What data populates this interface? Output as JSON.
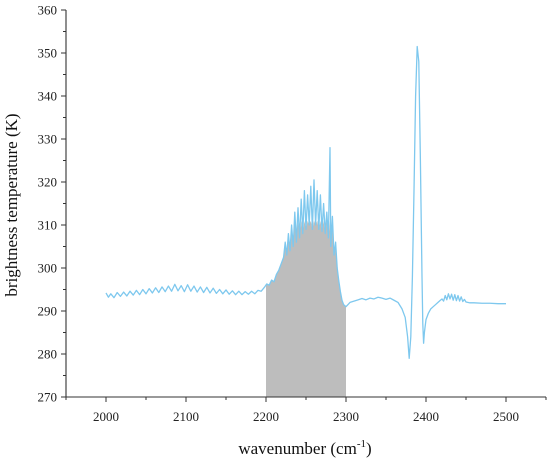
{
  "chart_data": {
    "type": "line",
    "xlabel_main": "wavenumber (cm",
    "xlabel_sup": "-1",
    "xlabel_end": ")",
    "ylabel": "brightness temperature (K)",
    "xlim": [
      1950,
      2550
    ],
    "ylim": [
      270,
      360
    ],
    "xticks": [
      2000,
      2100,
      2200,
      2300,
      2400,
      2500
    ],
    "yticks": [
      270,
      280,
      290,
      300,
      310,
      320,
      330,
      340,
      350,
      360
    ],
    "shaded_region": {
      "x_start": 2200,
      "x_end": 2300,
      "color": "#bdbdbd"
    },
    "series": [
      {
        "color": "#7ec8ee",
        "points": [
          [
            2000,
            294.2
          ],
          [
            2003,
            293.2
          ],
          [
            2006,
            294.0
          ],
          [
            2010,
            293.1
          ],
          [
            2014,
            294.3
          ],
          [
            2018,
            293.4
          ],
          [
            2022,
            294.4
          ],
          [
            2026,
            293.5
          ],
          [
            2030,
            294.6
          ],
          [
            2034,
            293.7
          ],
          [
            2038,
            294.8
          ],
          [
            2042,
            293.8
          ],
          [
            2046,
            295.0
          ],
          [
            2050,
            294.0
          ],
          [
            2054,
            295.2
          ],
          [
            2058,
            294.2
          ],
          [
            2062,
            295.4
          ],
          [
            2066,
            294.3
          ],
          [
            2070,
            295.6
          ],
          [
            2074,
            294.5
          ],
          [
            2078,
            295.8
          ],
          [
            2082,
            294.6
          ],
          [
            2086,
            296.2
          ],
          [
            2090,
            294.7
          ],
          [
            2094,
            295.9
          ],
          [
            2098,
            294.5
          ],
          [
            2102,
            296.1
          ],
          [
            2106,
            294.6
          ],
          [
            2110,
            295.8
          ],
          [
            2114,
            294.4
          ],
          [
            2118,
            295.6
          ],
          [
            2122,
            294.3
          ],
          [
            2126,
            295.5
          ],
          [
            2130,
            294.2
          ],
          [
            2134,
            295.3
          ],
          [
            2138,
            294.1
          ],
          [
            2142,
            295.0
          ],
          [
            2146,
            294.0
          ],
          [
            2150,
            294.9
          ],
          [
            2154,
            293.9
          ],
          [
            2158,
            294.7
          ],
          [
            2162,
            293.8
          ],
          [
            2166,
            294.6
          ],
          [
            2170,
            293.8
          ],
          [
            2174,
            294.5
          ],
          [
            2178,
            293.9
          ],
          [
            2182,
            294.6
          ],
          [
            2186,
            294.0
          ],
          [
            2190,
            294.8
          ],
          [
            2194,
            294.6
          ],
          [
            2198,
            295.5
          ],
          [
            2201,
            296.3
          ],
          [
            2204,
            296.0
          ],
          [
            2207,
            297.2
          ],
          [
            2210,
            296.8
          ],
          [
            2213,
            298.5
          ],
          [
            2216,
            299.5
          ],
          [
            2219,
            301.0
          ],
          [
            2222,
            302.5
          ],
          [
            2224,
            306.0
          ],
          [
            2226,
            303.0
          ],
          [
            2228,
            308.0
          ],
          [
            2230,
            304.0
          ],
          [
            2232,
            310.0
          ],
          [
            2234,
            305.0
          ],
          [
            2236,
            313.0
          ],
          [
            2238,
            306.0
          ],
          [
            2240,
            314.0
          ],
          [
            2242,
            307.0
          ],
          [
            2244,
            316.0
          ],
          [
            2246,
            308.0
          ],
          [
            2248,
            318.0
          ],
          [
            2250,
            309.0
          ],
          [
            2252,
            317.0
          ],
          [
            2254,
            310.0
          ],
          [
            2256,
            319.0
          ],
          [
            2258,
            309.0
          ],
          [
            2260,
            320.5
          ],
          [
            2262,
            310.0
          ],
          [
            2264,
            318.0
          ],
          [
            2266,
            309.0
          ],
          [
            2268,
            317.0
          ],
          [
            2270,
            308.5
          ],
          [
            2272,
            315.0
          ],
          [
            2274,
            308.0
          ],
          [
            2276,
            313.0
          ],
          [
            2278,
            307.0
          ],
          [
            2280,
            328.0
          ],
          [
            2281,
            305.0
          ],
          [
            2283,
            312.0
          ],
          [
            2285,
            303.0
          ],
          [
            2287,
            306.0
          ],
          [
            2289,
            300.0
          ],
          [
            2291,
            297.0
          ],
          [
            2293,
            294.5
          ],
          [
            2295,
            292.5
          ],
          [
            2297,
            291.5
          ],
          [
            2300,
            291.0
          ],
          [
            2305,
            292.0
          ],
          [
            2310,
            292.3
          ],
          [
            2315,
            292.6
          ],
          [
            2320,
            292.9
          ],
          [
            2325,
            292.6
          ],
          [
            2330,
            293.0
          ],
          [
            2335,
            292.8
          ],
          [
            2340,
            293.2
          ],
          [
            2345,
            293.0
          ],
          [
            2350,
            292.7
          ],
          [
            2355,
            293.0
          ],
          [
            2360,
            292.5
          ],
          [
            2365,
            292.0
          ],
          [
            2370,
            290.5
          ],
          [
            2374,
            288.5
          ],
          [
            2377,
            284.0
          ],
          [
            2379,
            279.0
          ],
          [
            2381,
            284.0
          ],
          [
            2383,
            298.0
          ],
          [
            2385,
            318.0
          ],
          [
            2387,
            340.0
          ],
          [
            2389,
            351.5
          ],
          [
            2391,
            348.0
          ],
          [
            2393,
            325.0
          ],
          [
            2395,
            298.0
          ],
          [
            2396,
            287.0
          ],
          [
            2397,
            282.5
          ],
          [
            2398,
            285.0
          ],
          [
            2400,
            288.0
          ],
          [
            2403,
            289.5
          ],
          [
            2406,
            290.5
          ],
          [
            2409,
            291.0
          ],
          [
            2412,
            291.5
          ],
          [
            2415,
            292.0
          ],
          [
            2418,
            292.5
          ],
          [
            2420,
            292.8
          ],
          [
            2422,
            292.3
          ],
          [
            2424,
            293.6
          ],
          [
            2426,
            292.6
          ],
          [
            2428,
            294.0
          ],
          [
            2430,
            292.8
          ],
          [
            2432,
            293.9
          ],
          [
            2434,
            292.5
          ],
          [
            2436,
            293.8
          ],
          [
            2438,
            292.4
          ],
          [
            2440,
            293.6
          ],
          [
            2442,
            292.3
          ],
          [
            2444,
            293.3
          ],
          [
            2446,
            292.2
          ],
          [
            2448,
            292.7
          ],
          [
            2450,
            292.1
          ],
          [
            2455,
            291.9
          ],
          [
            2460,
            291.9
          ],
          [
            2470,
            291.8
          ],
          [
            2480,
            291.8
          ],
          [
            2490,
            291.7
          ],
          [
            2500,
            291.7
          ]
        ]
      }
    ]
  }
}
